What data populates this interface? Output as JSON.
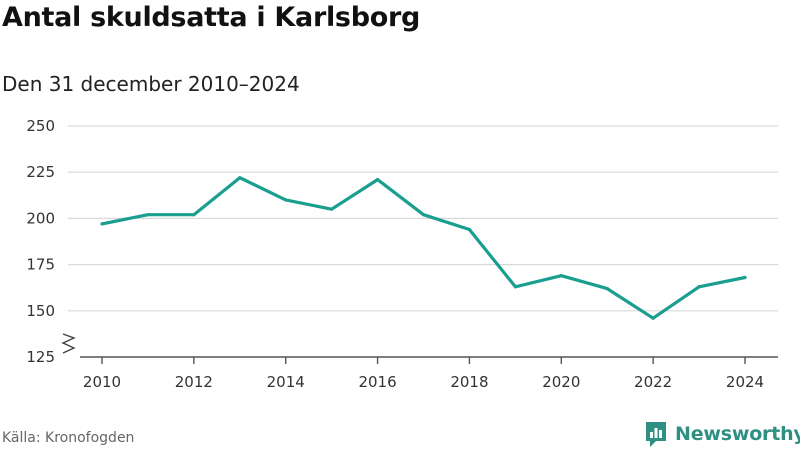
{
  "chart_data": {
    "type": "line",
    "title": "Antal skuldsatta i Karlsborg",
    "subtitle": "Den 31 december 2010–2024",
    "x": [
      2010,
      2011,
      2012,
      2013,
      2014,
      2015,
      2016,
      2017,
      2018,
      2019,
      2020,
      2021,
      2022,
      2023,
      2024
    ],
    "series": [
      {
        "values": [
          197,
          202,
          202,
          222,
          210,
          205,
          221,
          202,
          194,
          163,
          169,
          162,
          146,
          163,
          168
        ]
      }
    ],
    "x_ticks": [
      "2010",
      "2012",
      "2014",
      "2016",
      "2018",
      "2020",
      "2022",
      "2024"
    ],
    "y_ticks": [
      "125",
      "150",
      "175",
      "200",
      "225",
      "250"
    ],
    "ylim": [
      125,
      250
    ],
    "xlim": [
      2010,
      2024
    ],
    "axis_break": true,
    "grid": true,
    "line_color": "#1a9e8f",
    "grid_color": "#d9d9d9"
  },
  "footer": {
    "source": "Källa: Kronofogden",
    "brand": "Newsworthy",
    "brand_color": "#2e8f82",
    "brand_icon": "bar-chart-speech-bubble-icon"
  }
}
